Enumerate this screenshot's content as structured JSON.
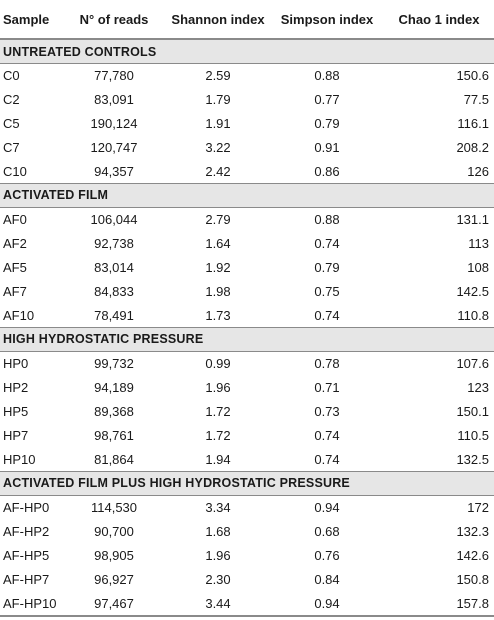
{
  "table": {
    "headers": [
      "Sample",
      "N° of reads",
      "Shannon index",
      "Simpson index",
      "Chao 1 index"
    ],
    "sections": [
      {
        "title": "UNTREATED CONTROLS",
        "rows": [
          [
            "C0",
            "77,780",
            "2.59",
            "0.88",
            "150.6"
          ],
          [
            "C2",
            "83,091",
            "1.79",
            "0.77",
            "77.5"
          ],
          [
            "C5",
            "190,124",
            "1.91",
            "0.79",
            "116.1"
          ],
          [
            "C7",
            "120,747",
            "3.22",
            "0.91",
            "208.2"
          ],
          [
            "C10",
            "94,357",
            "2.42",
            "0.86",
            "126"
          ]
        ]
      },
      {
        "title": "ACTIVATED FILM",
        "rows": [
          [
            "AF0",
            "106,044",
            "2.79",
            "0.88",
            "131.1"
          ],
          [
            "AF2",
            "92,738",
            "1.64",
            "0.74",
            "113"
          ],
          [
            "AF5",
            "83,014",
            "1.92",
            "0.79",
            "108"
          ],
          [
            "AF7",
            "84,833",
            "1.98",
            "0.75",
            "142.5"
          ],
          [
            "AF10",
            "78,491",
            "1.73",
            "0.74",
            "110.8"
          ]
        ]
      },
      {
        "title": "HIGH HYDROSTATIC PRESSURE",
        "rows": [
          [
            "HP0",
            "99,732",
            "0.99",
            "0.78",
            "107.6"
          ],
          [
            "HP2",
            "94,189",
            "1.96",
            "0.71",
            "123"
          ],
          [
            "HP5",
            "89,368",
            "1.72",
            "0.73",
            "150.1"
          ],
          [
            "HP7",
            "98,761",
            "1.72",
            "0.74",
            "110.5"
          ],
          [
            "HP10",
            "81,864",
            "1.94",
            "0.74",
            "132.5"
          ]
        ]
      },
      {
        "title": "ACTIVATED FILM PLUS HIGH HYDROSTATIC PRESSURE",
        "rows": [
          [
            "AF-HP0",
            "114,530",
            "3.34",
            "0.94",
            "172"
          ],
          [
            "AF-HP2",
            "90,700",
            "1.68",
            "0.68",
            "132.3"
          ],
          [
            "AF-HP5",
            "98,905",
            "1.96",
            "0.76",
            "142.6"
          ],
          [
            "AF-HP7",
            "96,927",
            "2.30",
            "0.84",
            "150.8"
          ],
          [
            "AF-HP10",
            "97,467",
            "3.44",
            "0.94",
            "157.8"
          ]
        ]
      }
    ]
  }
}
